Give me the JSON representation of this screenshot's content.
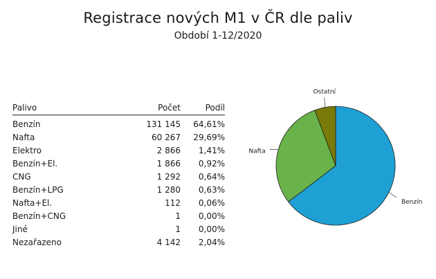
{
  "header": {
    "title": "Registrace nových M1 v ČR dle paliv",
    "subtitle": "Období 1-12/2020"
  },
  "table": {
    "columns": [
      "Palivo",
      "Počet",
      "Podíl"
    ],
    "rows": [
      {
        "name": "Benzín",
        "count": "131 145",
        "share": "64,61%"
      },
      {
        "name": "Nafta",
        "count": "60 267",
        "share": "29,69%"
      },
      {
        "name": "Elektro",
        "count": "2 866",
        "share": "1,41%"
      },
      {
        "name": "Benzín+El.",
        "count": "1 866",
        "share": "0,92%"
      },
      {
        "name": "CNG",
        "count": "1 292",
        "share": "0,64%"
      },
      {
        "name": "Benzín+LPG",
        "count": "1 280",
        "share": "0,63%"
      },
      {
        "name": "Nafta+El.",
        "count": "112",
        "share": "0,06%"
      },
      {
        "name": "Benzín+CNG",
        "count": "1",
        "share": "0,00%"
      },
      {
        "name": "Jiné",
        "count": "1",
        "share": "0,00%"
      },
      {
        "name": "Nezařazeno",
        "count": "4 142",
        "share": "2,04%"
      }
    ]
  },
  "chart_data": {
    "type": "pie",
    "title": "",
    "slices": [
      {
        "label": "Benzín",
        "value": 64.61,
        "color": "#1fa0d5"
      },
      {
        "label": "Nafta",
        "value": 29.69,
        "color": "#6ab34a"
      },
      {
        "label": "Ostatní",
        "value": 5.7,
        "color": "#7a7a0a"
      }
    ],
    "start": "top, clockwise"
  }
}
